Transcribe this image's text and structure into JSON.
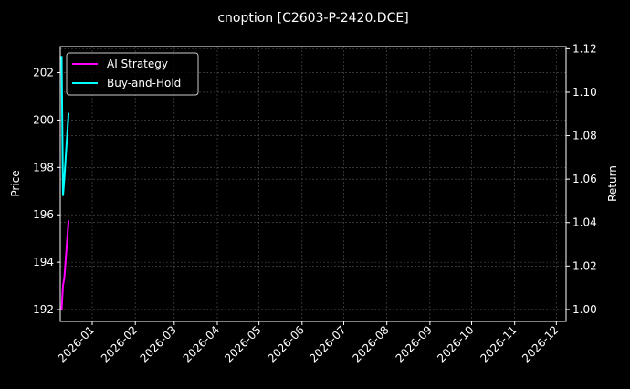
{
  "chart_data": {
    "type": "line",
    "title": "cnoption [C2603-P-2420.DCE]",
    "ylabel_left": "Price",
    "ylabel_right": "Return",
    "xlabel": "",
    "x": [
      "2025-12-10",
      "2025-12-11",
      "2025-12-12",
      "2025-12-15"
    ],
    "series": [
      {
        "name": "AI Strategy",
        "axis": "right",
        "color": "#ff00ff",
        "values": [
          1.0,
          1.011,
          1.015,
          1.041
        ]
      },
      {
        "name": "Buy-and-Hold",
        "axis": "left",
        "color": "#00ffff",
        "values": [
          202.7,
          196.8,
          197.6,
          200.3
        ]
      }
    ],
    "xlim": [
      "2025-12-09",
      "2026-12-08"
    ],
    "ylim_left": [
      191.5,
      203.1
    ],
    "ylim_right": [
      0.9945,
      1.121
    ],
    "x_ticks": [
      "2026-01",
      "2026-02",
      "2026-03",
      "2026-04",
      "2026-05",
      "2026-06",
      "2026-07",
      "2026-08",
      "2026-09",
      "2026-10",
      "2026-11",
      "2026-12"
    ],
    "y_ticks_left": [
      "192",
      "194",
      "196",
      "198",
      "200",
      "202"
    ],
    "y_ticks_right": [
      "1.00",
      "1.02",
      "1.04",
      "1.06",
      "1.08",
      "1.10",
      "1.12"
    ],
    "grid": true,
    "legend_position": "upper-left",
    "background": "#000000"
  }
}
